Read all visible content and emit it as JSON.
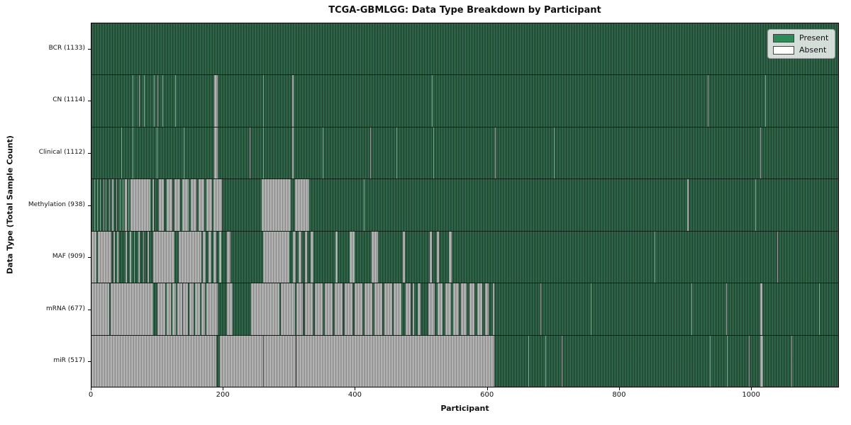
{
  "chart_data": {
    "type": "heatmap",
    "title": "TCGA-GBMLGG: Data Type Breakdown by Participant",
    "xlabel": "Participant",
    "ylabel": "Data Type (Total Sample Count)",
    "x_max": 1133,
    "x_ticks": [
      0,
      200,
      400,
      600,
      800,
      1000
    ],
    "grid": false,
    "legend_position": "upper right",
    "colors": {
      "present": "#2e8b57",
      "absent": "#ffffff",
      "present_fill_dark": "#1c4230",
      "present_fill_light": "#35714f",
      "absent_fill_dark": "#878787",
      "absent_fill_light": "#c2c2c2"
    },
    "legend": [
      {
        "key": "present",
        "label": "Present",
        "color": "#2e8b57"
      },
      {
        "key": "absent",
        "label": "Absent",
        "color": "#ffffff"
      }
    ],
    "rows": [
      {
        "key": "bcr",
        "label": "BCR (1133)",
        "name": "BCR",
        "total": 1133,
        "absent_segments": []
      },
      {
        "key": "cn",
        "label": "CN (1114)",
        "name": "CN",
        "total": 1114,
        "absent_segments": [
          [
            62,
            63
          ],
          [
            72,
            73
          ],
          [
            80,
            81
          ],
          [
            95,
            96
          ],
          [
            100,
            101
          ],
          [
            107,
            108
          ],
          [
            127,
            128
          ],
          [
            186,
            191
          ],
          [
            260,
            261
          ],
          [
            304,
            306
          ],
          [
            516,
            517
          ],
          [
            933,
            934
          ],
          [
            1020,
            1021
          ]
        ]
      },
      {
        "key": "clinical",
        "label": "Clinical (1112)",
        "name": "Clinical",
        "total": 1112,
        "absent_segments": [
          [
            45,
            46
          ],
          [
            62,
            63
          ],
          [
            99,
            100
          ],
          [
            140,
            141
          ],
          [
            152,
            153
          ],
          [
            186,
            191
          ],
          [
            240,
            241
          ],
          [
            260,
            261
          ],
          [
            304,
            306
          ],
          [
            350,
            351
          ],
          [
            422,
            423
          ],
          [
            462,
            463
          ],
          [
            518,
            519
          ],
          [
            611,
            612
          ],
          [
            700,
            701
          ],
          [
            1013,
            1014
          ]
        ]
      },
      {
        "key": "methylation",
        "label": "Methylation (938)",
        "name": "Methylation",
        "total": 938,
        "absent_segments": [
          [
            4,
            5
          ],
          [
            9,
            10
          ],
          [
            13,
            14
          ],
          [
            18,
            19
          ],
          [
            22,
            23
          ],
          [
            27,
            28
          ],
          [
            31,
            33
          ],
          [
            38,
            39
          ],
          [
            43,
            44
          ],
          [
            47,
            48
          ],
          [
            50,
            54
          ],
          [
            56,
            57
          ],
          [
            59,
            89
          ],
          [
            92,
            95
          ],
          [
            102,
            110
          ],
          [
            114,
            122
          ],
          [
            126,
            134
          ],
          [
            138,
            147
          ],
          [
            150,
            159
          ],
          [
            162,
            171
          ],
          [
            174,
            183
          ],
          [
            185,
            198
          ],
          [
            258,
            302
          ],
          [
            308,
            330
          ],
          [
            412,
            413
          ],
          [
            902,
            904
          ],
          [
            1005,
            1006
          ]
        ]
      },
      {
        "key": "maf",
        "label": "MAF (909)",
        "name": "MAF",
        "total": 909,
        "absent_segments": [
          [
            0,
            7
          ],
          [
            10,
            30
          ],
          [
            33,
            35
          ],
          [
            39,
            41
          ],
          [
            52,
            54
          ],
          [
            58,
            60
          ],
          [
            64,
            66
          ],
          [
            71,
            73
          ],
          [
            78,
            80
          ],
          [
            85,
            87
          ],
          [
            93,
            126
          ],
          [
            132,
            166
          ],
          [
            169,
            173
          ],
          [
            177,
            181
          ],
          [
            185,
            189
          ],
          [
            193,
            197
          ],
          [
            205,
            210
          ],
          [
            260,
            300
          ],
          [
            305,
            309
          ],
          [
            314,
            318
          ],
          [
            323,
            327
          ],
          [
            332,
            336
          ],
          [
            369,
            373
          ],
          [
            391,
            398
          ],
          [
            424,
            434
          ],
          [
            471,
            475
          ],
          [
            512,
            516
          ],
          [
            523,
            526
          ],
          [
            541,
            546
          ],
          [
            853,
            854
          ],
          [
            1039,
            1040
          ]
        ]
      },
      {
        "key": "mrna",
        "label": "mRNA (677)",
        "name": "mRNA",
        "total": 677,
        "absent_segments": [
          [
            0,
            27
          ],
          [
            29,
            93
          ],
          [
            100,
            112
          ],
          [
            114,
            120
          ],
          [
            122,
            128
          ],
          [
            130,
            137
          ],
          [
            139,
            146
          ],
          [
            148,
            155
          ],
          [
            157,
            164
          ],
          [
            166,
            172
          ],
          [
            174,
            191
          ],
          [
            205,
            214
          ],
          [
            242,
            285
          ],
          [
            287,
            308
          ],
          [
            310,
            320
          ],
          [
            323,
            335
          ],
          [
            338,
            350
          ],
          [
            353,
            365
          ],
          [
            368,
            380
          ],
          [
            383,
            395
          ],
          [
            398,
            410
          ],
          [
            413,
            425
          ],
          [
            428,
            440
          ],
          [
            443,
            455
          ],
          [
            458,
            469
          ],
          [
            476,
            483
          ],
          [
            486,
            489
          ],
          [
            494,
            498
          ],
          [
            510,
            520
          ],
          [
            524,
            532
          ],
          [
            536,
            544
          ],
          [
            548,
            556
          ],
          [
            560,
            568
          ],
          [
            572,
            580
          ],
          [
            584,
            592
          ],
          [
            596,
            601
          ],
          [
            608,
            610
          ],
          [
            680,
            681
          ],
          [
            756,
            757
          ],
          [
            909,
            910
          ],
          [
            961,
            962
          ],
          [
            1013,
            1016
          ],
          [
            1102,
            1103
          ]
        ]
      },
      {
        "key": "mir",
        "label": "miR (517)",
        "name": "miR",
        "total": 517,
        "absent_segments": [
          [
            0,
            189
          ],
          [
            194,
            260
          ],
          [
            261,
            309
          ],
          [
            310,
            610
          ],
          [
            662,
            663
          ],
          [
            687,
            688
          ],
          [
            712,
            713
          ],
          [
            937,
            938
          ],
          [
            962,
            963
          ],
          [
            996,
            997
          ],
          [
            1013,
            1017
          ],
          [
            1060,
            1061
          ]
        ]
      }
    ]
  }
}
